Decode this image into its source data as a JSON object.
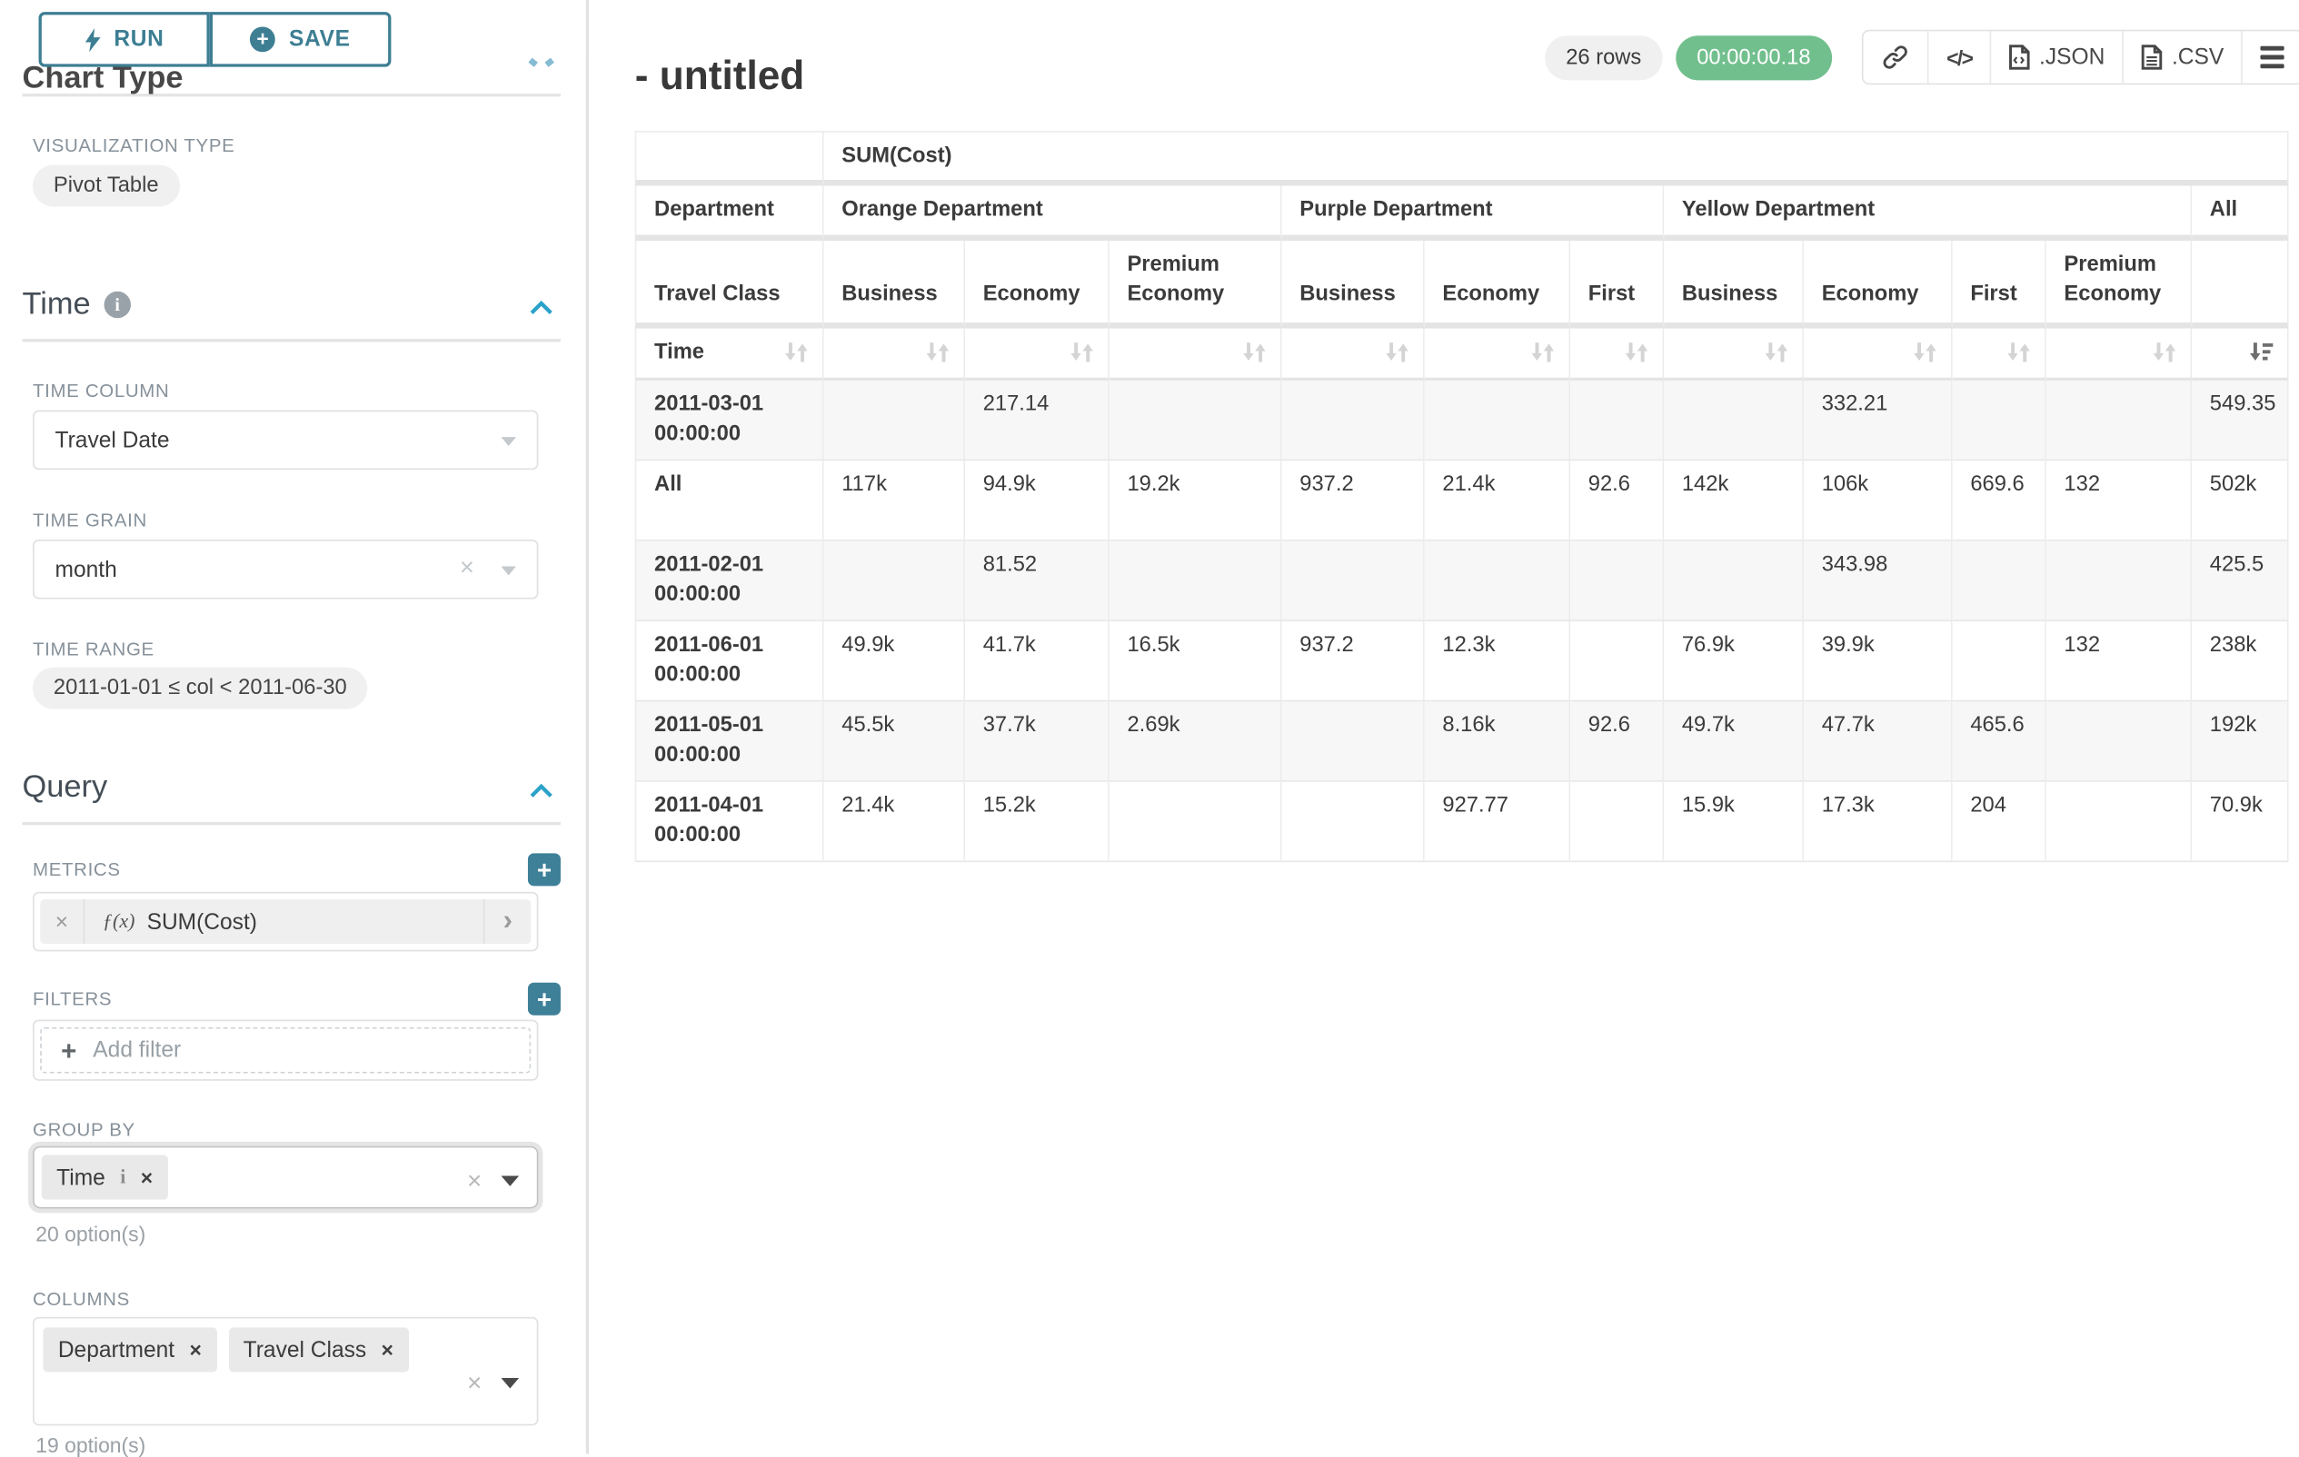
{
  "sidebar": {
    "run_label": "RUN",
    "save_label": "SAVE",
    "chart_type_title": "Chart Type",
    "visualization_type_label": "VISUALIZATION TYPE",
    "visualization_type_value": "Pivot Table",
    "time_section": {
      "title": "Time",
      "time_column_label": "TIME COLUMN",
      "time_column_value": "Travel Date",
      "time_grain_label": "TIME GRAIN",
      "time_grain_value": "month",
      "time_range_label": "TIME RANGE",
      "time_range_value": "2011-01-01 ≤ col < 2011-06-30"
    },
    "query_section": {
      "title": "Query",
      "metrics_label": "METRICS",
      "metric_fx": "ƒ(x)",
      "metric_value": "SUM(Cost)",
      "filters_label": "FILTERS",
      "add_filter_label": "Add filter",
      "group_by_label": "GROUP BY",
      "group_by_values": [
        "Time"
      ],
      "group_by_hint": "20 option(s)",
      "columns_label": "COLUMNS",
      "columns_values": [
        "Department",
        "Travel Class"
      ],
      "columns_hint": "19 option(s)"
    }
  },
  "header": {
    "title": "- untitled",
    "row_count_badge": "26 rows",
    "timer_badge": "00:00:00.18",
    "json_label": ".JSON",
    "csv_label": ".CSV"
  },
  "pivot_table": {
    "metric_header": "SUM(Cost)",
    "row_dim_label": "Department",
    "row_dim2_label": "Travel Class",
    "time_label": "Time",
    "groups": [
      {
        "label": "Orange Department",
        "cols": [
          "Business",
          "Economy",
          "Premium Economy"
        ]
      },
      {
        "label": "Purple Department",
        "cols": [
          "Business",
          "Economy",
          "First"
        ]
      },
      {
        "label": "Yellow Department",
        "cols": [
          "Business",
          "Economy",
          "First",
          "Premium Economy"
        ]
      },
      {
        "label": "All",
        "cols": [
          ""
        ]
      }
    ],
    "rows": [
      {
        "label": "2011-03-01 00:00:00",
        "cells": [
          "",
          "217.14",
          "",
          "",
          "",
          "",
          "",
          "332.21",
          "",
          "",
          "549.35"
        ]
      },
      {
        "label": "All",
        "cells": [
          "117k",
          "94.9k",
          "19.2k",
          "937.2",
          "21.4k",
          "92.6",
          "142k",
          "106k",
          "669.6",
          "132",
          "502k"
        ]
      },
      {
        "label": "2011-02-01 00:00:00",
        "cells": [
          "",
          "81.52",
          "",
          "",
          "",
          "",
          "",
          "343.98",
          "",
          "",
          "425.5"
        ]
      },
      {
        "label": "2011-06-01 00:00:00",
        "cells": [
          "49.9k",
          "41.7k",
          "16.5k",
          "937.2",
          "12.3k",
          "",
          "76.9k",
          "39.9k",
          "",
          "132",
          "238k"
        ]
      },
      {
        "label": "2011-05-01 00:00:00",
        "cells": [
          "45.5k",
          "37.7k",
          "2.69k",
          "",
          "8.16k",
          "92.6",
          "49.7k",
          "47.7k",
          "465.6",
          "",
          "192k"
        ]
      },
      {
        "label": "2011-04-01 00:00:00",
        "cells": [
          "21.4k",
          "15.2k",
          "",
          "",
          "927.77",
          "",
          "15.9k",
          "17.3k",
          "204",
          "",
          "70.9k"
        ]
      }
    ]
  },
  "colors": {
    "accent_teal": "#3d7e93",
    "plus_button_teal": "#3d8098",
    "timer_green": "#72bf8e",
    "section_chevron_blue": "#2ba2c9"
  }
}
